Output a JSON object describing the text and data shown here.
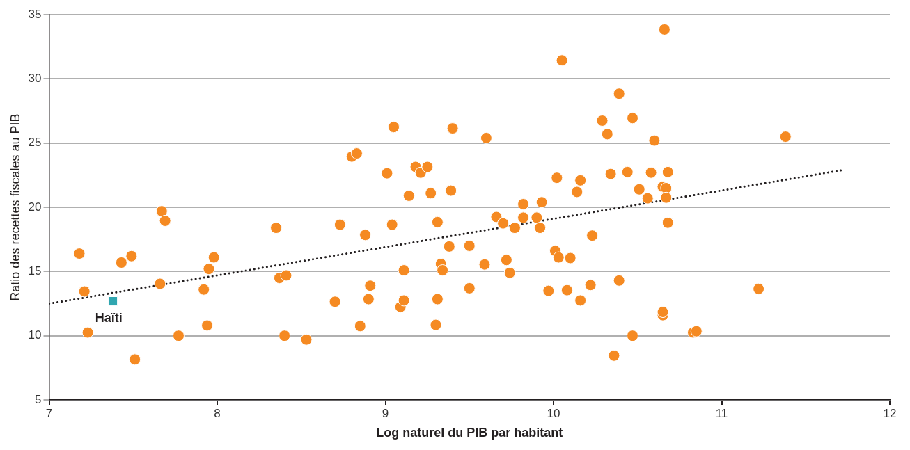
{
  "chart_data": {
    "type": "scatter",
    "xlabel": "Log naturel du PIB par habitant",
    "ylabel": "Ratio des recettes fiscales au PIB",
    "xlim": [
      7,
      12
    ],
    "xticks": [
      7,
      8,
      9,
      10,
      11,
      12
    ],
    "ylim": [
      5,
      35
    ],
    "yticks": [
      5,
      10,
      15,
      20,
      25,
      30,
      35
    ],
    "grid": "y",
    "legend": false,
    "series": [
      {
        "type": "scatter",
        "color": "#f58a22",
        "marker": "circle",
        "x": [
          7.18,
          7.21,
          7.23,
          7.43,
          7.49,
          7.51,
          7.66,
          7.67,
          7.69,
          7.77,
          7.92,
          7.94,
          7.95,
          7.98,
          8.35,
          8.37,
          8.4,
          8.41,
          8.53,
          8.7,
          8.73,
          8.8,
          8.83,
          8.85,
          8.88,
          8.9,
          8.91,
          9.01,
          9.04,
          9.05,
          9.09,
          9.11,
          9.11,
          9.14,
          9.18,
          9.21,
          9.25,
          9.27,
          9.3,
          9.31,
          9.31,
          9.33,
          9.34,
          9.38,
          9.39,
          9.4,
          9.5,
          9.5,
          9.59,
          9.6,
          9.66,
          9.7,
          9.72,
          9.74,
          9.77,
          9.82,
          9.82,
          9.9,
          9.92,
          9.93,
          9.97,
          10.01,
          10.02,
          10.03,
          10.05,
          10.08,
          10.1,
          10.14,
          10.16,
          10.16,
          10.22,
          10.23,
          10.29,
          10.32,
          10.34,
          10.36,
          10.39,
          10.39,
          10.44,
          10.47,
          10.47,
          10.51,
          10.56,
          10.58,
          10.6,
          10.65,
          10.65,
          10.65,
          10.66,
          10.67,
          10.67,
          10.68,
          10.68,
          10.83,
          10.85,
          11.22,
          11.38
        ],
        "values": [
          16.4,
          13.45,
          10.25,
          15.7,
          16.2,
          8.15,
          14.05,
          19.7,
          18.95,
          10.0,
          13.6,
          10.8,
          15.2,
          16.1,
          18.4,
          14.5,
          10.0,
          14.7,
          9.7,
          12.65,
          18.65,
          23.95,
          24.2,
          10.75,
          17.85,
          12.85,
          13.9,
          22.65,
          18.65,
          26.25,
          12.25,
          15.1,
          12.75,
          20.9,
          23.15,
          22.7,
          23.15,
          21.1,
          10.85,
          18.85,
          12.85,
          15.6,
          15.1,
          16.95,
          21.3,
          26.15,
          13.7,
          17.0,
          15.55,
          25.4,
          19.25,
          18.75,
          15.9,
          14.9,
          18.4,
          20.25,
          19.2,
          19.2,
          18.4,
          20.4,
          13.5,
          16.6,
          22.3,
          16.1,
          31.45,
          13.55,
          16.05,
          21.2,
          22.1,
          12.75,
          13.95,
          17.8,
          26.75,
          25.7,
          22.6,
          8.45,
          28.85,
          14.3,
          22.75,
          26.95,
          10.0,
          21.4,
          20.7,
          22.7,
          25.2,
          21.6,
          11.6,
          11.85,
          33.85,
          21.5,
          20.75,
          22.75,
          18.8,
          10.25,
          10.35,
          13.65,
          25.5
        ]
      },
      {
        "type": "scatter",
        "name": "Haïti",
        "color": "#31a6b0",
        "marker": "square",
        "x": [
          7.38
        ],
        "values": [
          12.7
        ]
      },
      {
        "type": "line",
        "color": "#231f20",
        "line_style": "dotted",
        "marker": "none",
        "x": [
          7,
          11.72
        ],
        "values": [
          12.5,
          22.9
        ]
      }
    ]
  }
}
